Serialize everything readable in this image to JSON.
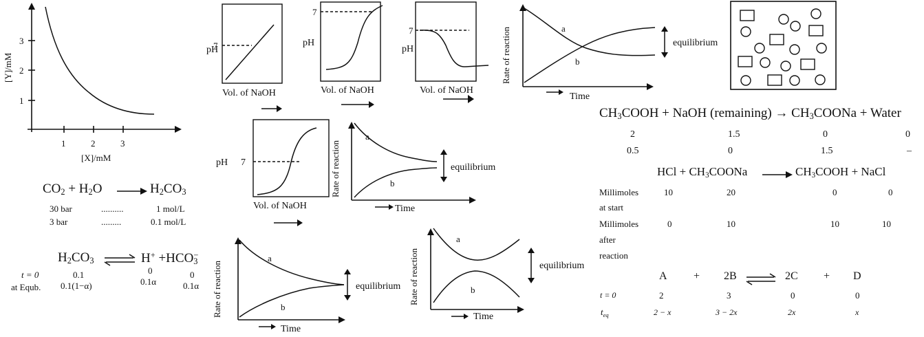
{
  "xy_graph": {
    "ylabel": "[Y]/mM",
    "xlabel": "[X]/mM",
    "yticks": [
      "1",
      "2",
      "3"
    ],
    "xticks": [
      "1",
      "2",
      "3"
    ]
  },
  "ph_graphs": {
    "ylabel": "pH",
    "seven": "7",
    "xlabel": "Vol. of NaOH"
  },
  "rate_graphs": {
    "ylabel": "Rate of reaction",
    "xlabel": "Time",
    "curve_a": "a",
    "curve_b": "b",
    "eq_label": "equilibrium"
  },
  "co2_equation": {
    "r1": "CO",
    "r1_sub": "2",
    "plus": "+",
    "r2": "H",
    "r2_sub": "2",
    "r2_tail": "O",
    "product": "H",
    "product_sub1": "2",
    "product_mid": "CO",
    "product_sub2": "3",
    "row1": [
      "30 bar",
      "..........",
      "1 mol/L"
    ],
    "row2": [
      "3 bar",
      ".........",
      "0.1 mol/L"
    ]
  },
  "h2co3_equation": {
    "reactant": "H",
    "reactant_sub1": "2",
    "reactant_mid": "CO",
    "reactant_sub2": "3",
    "p1": "H",
    "p1_sup": "+",
    "plus": "+",
    "p2": "HCO",
    "p2_sub": "3",
    "p2_sup": "−",
    "t0_label": "t = 0",
    "t0_values": [
      "0.1",
      "0",
      "0"
    ],
    "eq_label": "at Equb.",
    "eq_values": [
      "0.1(1−α)",
      "0.1α",
      "0.1α"
    ]
  },
  "acetic_table": {
    "r1": "CH",
    "r1_sub": "3",
    "r1_tail": "COOH",
    "plus1": "+",
    "r2": "NaOH (remaining)",
    "arrow": "→",
    "p1": "CH",
    "p1_sub": "3",
    "p1_tail": "COONa",
    "plus2": "+",
    "p2": "Water",
    "row1": [
      "2",
      "1.5",
      "0",
      "0"
    ],
    "row2": [
      "0.5",
      "0",
      "1.5",
      "–"
    ]
  },
  "hcl_table": {
    "r1": "HCl",
    "plus1": "+",
    "r2": "CH",
    "r2_sub": "3",
    "r2_tail": "COONa",
    "p1": "CH",
    "p1_sub": "3",
    "p1_tail": "COOH",
    "plus2": "+",
    "p2": "NaCl",
    "start_label": [
      "Millimoles",
      "at start"
    ],
    "start_values": [
      "10",
      "20",
      "0",
      "0"
    ],
    "after_label": [
      "Millimoles",
      "after",
      "reaction"
    ],
    "after_values": [
      "0",
      "10",
      "10",
      "10"
    ]
  },
  "abcd_table": {
    "a": "A",
    "plus1": "+",
    "b": "2B",
    "c": "2C",
    "plus2": "+",
    "d": "D",
    "t0_label": "t = 0",
    "t0_values": [
      "2",
      "3",
      "0",
      "0"
    ],
    "teq_label": "t",
    "teq_sub": "eq",
    "teq_values": [
      "2 − x",
      "3 − 2x",
      "2x",
      "x"
    ]
  }
}
